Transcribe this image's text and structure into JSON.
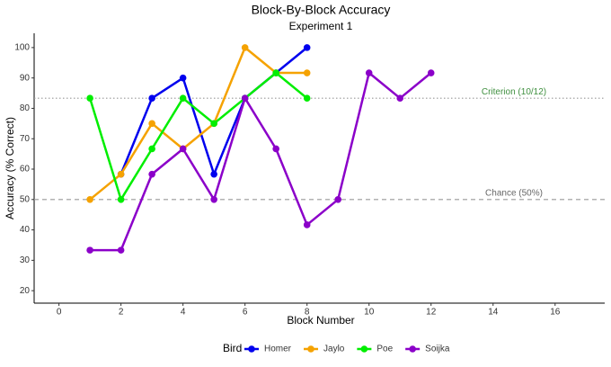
{
  "chart_data": {
    "type": "line",
    "title": "Block-By-Block Accuracy",
    "subtitle": "Experiment 1",
    "x_label": "Block Number",
    "y_label": "Accuracy (% Correct)",
    "legend_title": "Bird",
    "legend_position": "bottom",
    "x": [
      1,
      2,
      3,
      4,
      5,
      6,
      7,
      8,
      9,
      10,
      11,
      12
    ],
    "series": [
      {
        "name": "Homer",
        "color": "#0000ee",
        "values": [
          null,
          58.33,
          83.33,
          90,
          58.33,
          83.33,
          91.67,
          100,
          null,
          null,
          null,
          null
        ]
      },
      {
        "name": "Jaylo",
        "color": "#f5a200",
        "values": [
          50,
          58.33,
          75,
          66.67,
          75,
          100,
          91.67,
          91.67,
          null,
          null,
          null,
          null
        ]
      },
      {
        "name": "Poe",
        "color": "#00ee00",
        "values": [
          83.33,
          50,
          66.67,
          83.33,
          75,
          83.33,
          91.67,
          83.33,
          null,
          null,
          null,
          null
        ]
      },
      {
        "name": "Soijka",
        "color": "#8b00c9",
        "values": [
          33.33,
          33.33,
          58.33,
          66.67,
          50,
          83.33,
          66.67,
          41.67,
          50,
          91.67,
          83.33,
          91.67
        ]
      }
    ],
    "hlines": [
      {
        "value": 83.33,
        "label": "Criterion (10/12)",
        "color": "#3f8f3f",
        "line_color": "#999999",
        "dash": "dotted"
      },
      {
        "value": 50,
        "label": "Chance (50%)",
        "color": "#666666",
        "line_color": "#999999",
        "dash": "dashed"
      }
    ],
    "xlim": [
      -0.8,
      17.6
    ],
    "ylim": [
      15.9,
      104.7
    ],
    "xticks": [
      0,
      2,
      4,
      6,
      8,
      10,
      12,
      14,
      16
    ],
    "yticks": [
      20,
      30,
      40,
      50,
      60,
      70,
      80,
      90,
      100
    ],
    "grid": false
  }
}
